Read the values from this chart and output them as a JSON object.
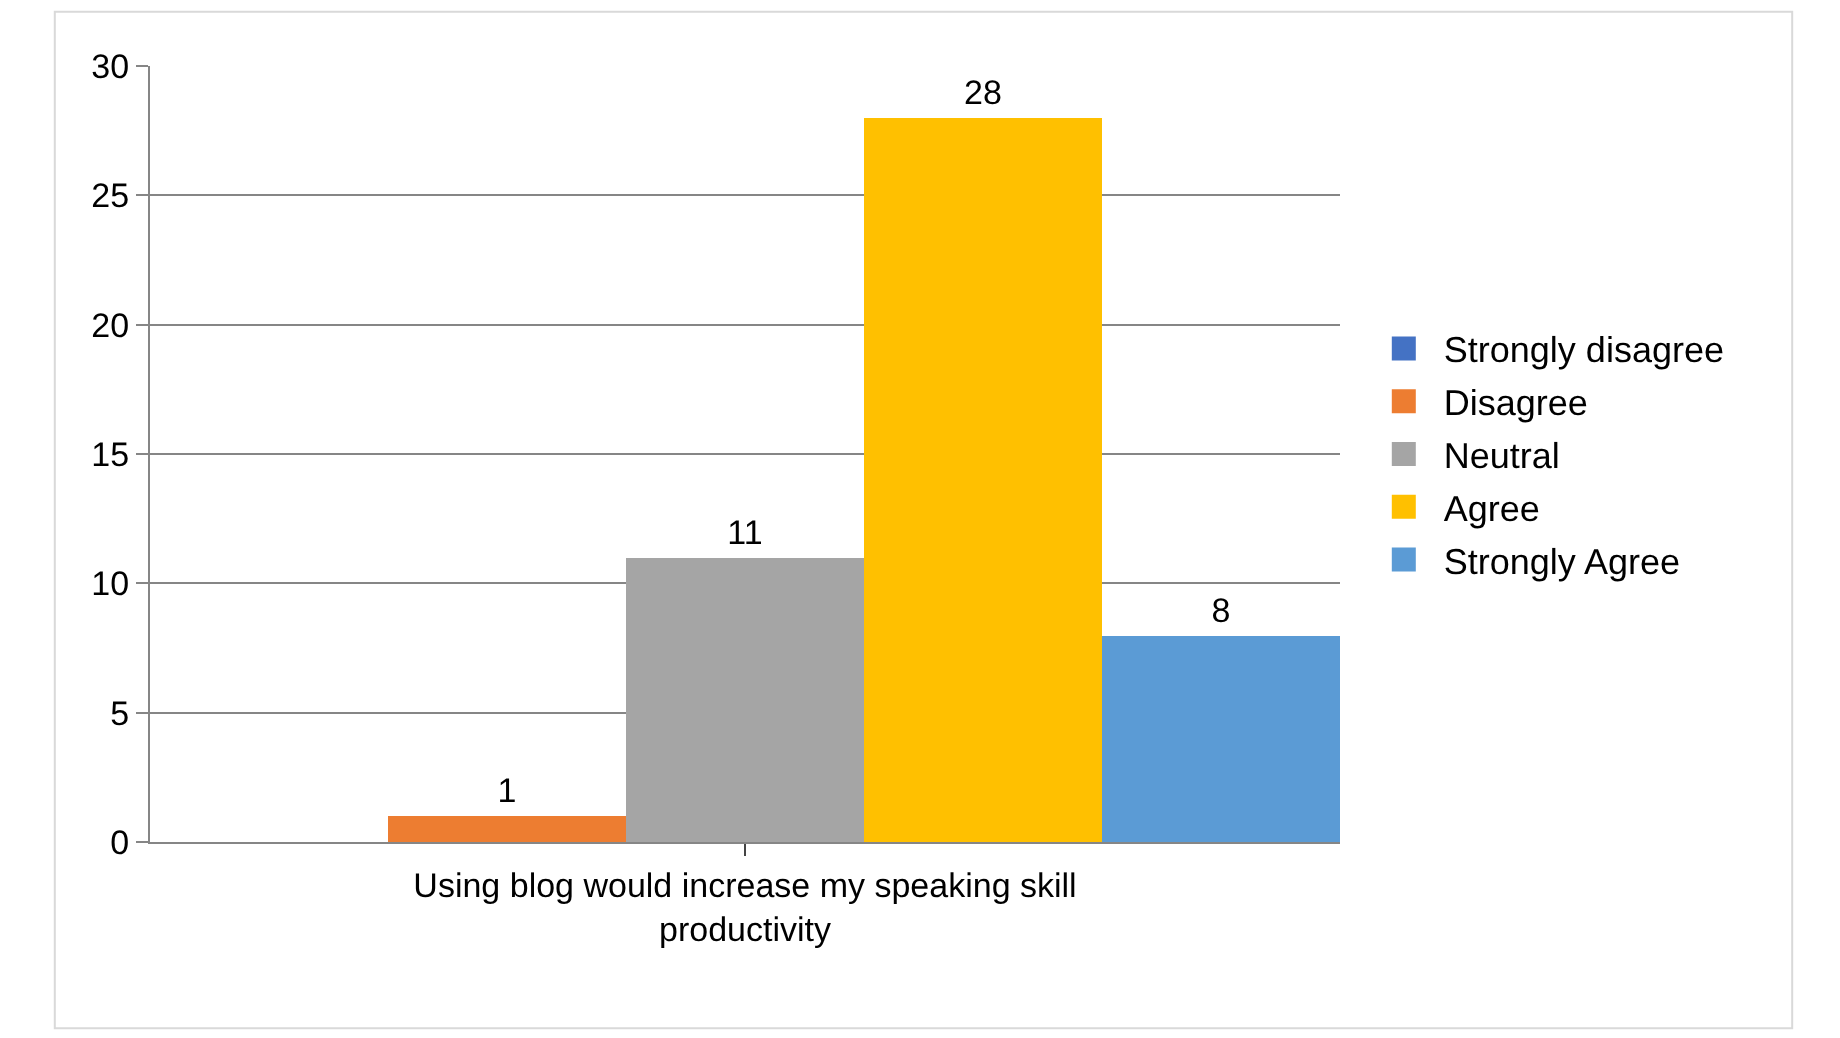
{
  "chart_data": {
    "type": "bar",
    "categories": [
      "Using blog would increase my speaking skill productivity"
    ],
    "series": [
      {
        "name": "Strongly disagree",
        "color": "#4472c4",
        "values": [
          0
        ],
        "value_labels": [
          null
        ]
      },
      {
        "name": "Disagree",
        "color": "#ed7d31",
        "values": [
          1
        ],
        "value_labels": [
          "1"
        ]
      },
      {
        "name": "Neutral",
        "color": "#a5a5a5",
        "values": [
          11
        ],
        "value_labels": [
          "11"
        ]
      },
      {
        "name": "Agree",
        "color": "#ffc000",
        "values": [
          28
        ],
        "value_labels": [
          "28"
        ]
      },
      {
        "name": "Strongly Agree",
        "color": "#5b9bd5",
        "values": [
          8
        ],
        "value_labels": [
          "8"
        ]
      }
    ],
    "ylim": [
      0,
      30
    ],
    "yticks": [
      0,
      5,
      10,
      15,
      20,
      25,
      30
    ],
    "grid": "y",
    "legend": "right"
  }
}
